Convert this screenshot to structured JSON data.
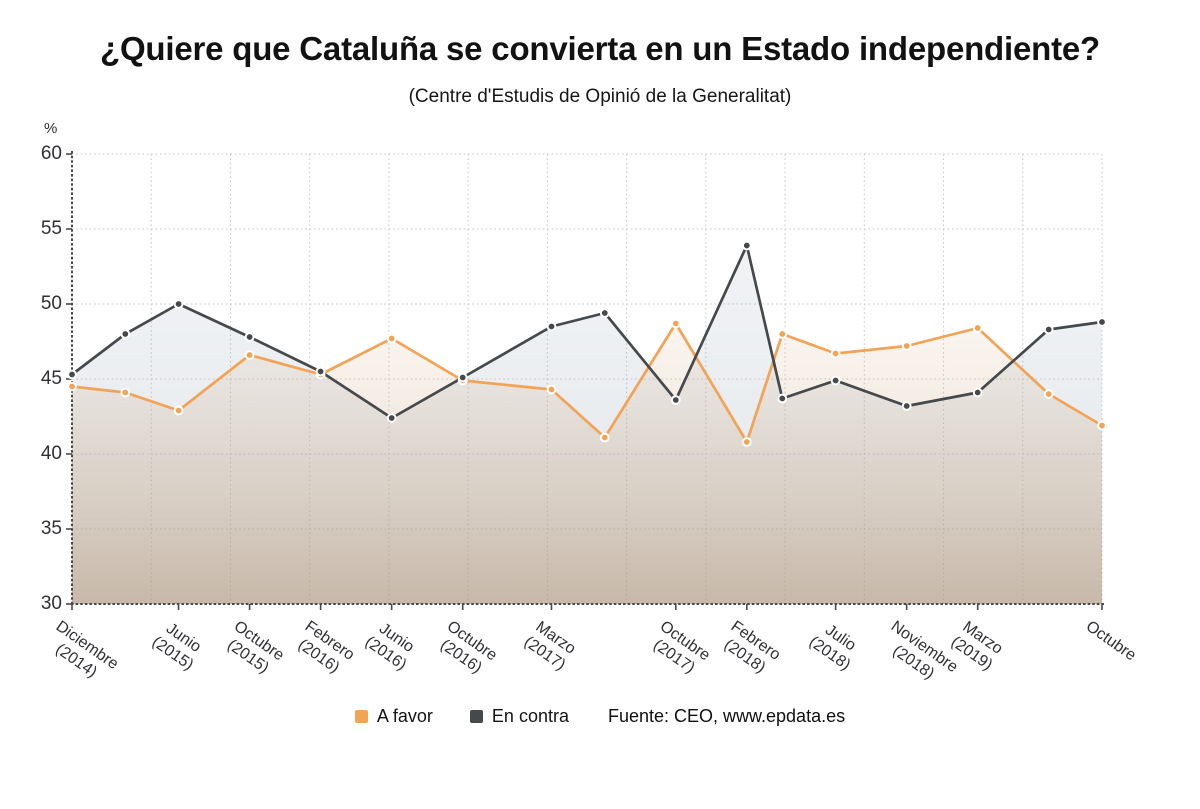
{
  "chart_data": {
    "type": "line",
    "title": "¿Quiere que Cataluña se convierta en un Estado independiente?",
    "subtitle": "(Centre d'Estudis de Opinió de la Generalitat)",
    "unit": "%",
    "ylim": [
      30,
      60
    ],
    "yticks": [
      60,
      55,
      50,
      45,
      40,
      35,
      30
    ],
    "x_total_months": 58,
    "grid": {
      "vertical_divisions": 13,
      "style": "dotted"
    },
    "legend_position": "bottom",
    "colors": {
      "a_favor": "#F2A356",
      "en_contra": "#46494C",
      "gridline": "#C9C7C5",
      "axis": "#4A4A4A"
    },
    "series": [
      {
        "id": "a_favor",
        "name": "A favor",
        "color": "#F2A356",
        "fill_top": "rgba(240,214,182,0.04)",
        "fill_mid": "rgba(214,182,146,0.20)",
        "fill_bottom": "rgba(176,142,106,0.50)"
      },
      {
        "id": "en_contra",
        "name": "En contra",
        "color": "#46494C",
        "fill_top": "rgba(148,162,180,0.10)",
        "fill_mid": "rgba(148,162,180,0.18)",
        "fill_bottom": "rgba(148,162,180,0.30)"
      }
    ],
    "points": [
      {
        "month_offset": 0,
        "label": "Diciembre",
        "year": "(2014)",
        "a_favor": 44.5,
        "en_contra": 45.3
      },
      {
        "month_offset": 3,
        "label": "",
        "year": "",
        "a_favor": 44.1,
        "en_contra": 48.0
      },
      {
        "month_offset": 6,
        "label": "Junio",
        "year": "(2015)",
        "a_favor": 42.9,
        "en_contra": 50.0
      },
      {
        "month_offset": 10,
        "label": "Octubre",
        "year": "(2015)",
        "a_favor": 46.6,
        "en_contra": 47.8
      },
      {
        "month_offset": 14,
        "label": "Febrero",
        "year": "(2016)",
        "a_favor": 45.3,
        "en_contra": 45.5
      },
      {
        "month_offset": 18,
        "label": "Junio",
        "year": "(2016)",
        "a_favor": 47.7,
        "en_contra": 42.4
      },
      {
        "month_offset": 22,
        "label": "Octubre",
        "year": "(2016)",
        "a_favor": 44.9,
        "en_contra": 45.1
      },
      {
        "month_offset": 27,
        "label": "Marzo",
        "year": "(2017)",
        "a_favor": 44.3,
        "en_contra": 48.5
      },
      {
        "month_offset": 30,
        "label": "",
        "year": "",
        "a_favor": 41.1,
        "en_contra": 49.4
      },
      {
        "month_offset": 34,
        "label": "Octubre",
        "year": "(2017)",
        "a_favor": 48.7,
        "en_contra": 43.6
      },
      {
        "month_offset": 38,
        "label": "Febrero",
        "year": "(2018)",
        "a_favor": 40.8,
        "en_contra": 53.9
      },
      {
        "month_offset": 40,
        "label": "",
        "year": "",
        "a_favor": 48.0,
        "en_contra": 43.7
      },
      {
        "month_offset": 43,
        "label": "Julio",
        "year": "(2018)",
        "a_favor": 46.7,
        "en_contra": 44.9
      },
      {
        "month_offset": 47,
        "label": "Noviembre",
        "year": "(2018)",
        "a_favor": 47.2,
        "en_contra": 43.2
      },
      {
        "month_offset": 51,
        "label": "Marzo",
        "year": "(2019)",
        "a_favor": 48.4,
        "en_contra": 44.1
      },
      {
        "month_offset": 55,
        "label": "",
        "year": "",
        "a_favor": 44.0,
        "en_contra": 48.3
      },
      {
        "month_offset": 58,
        "label": "Octubre",
        "year": "",
        "a_favor": 41.9,
        "en_contra": 48.8
      }
    ]
  },
  "legend": {
    "source": "Fuente: CEO, www.epdata.es"
  }
}
